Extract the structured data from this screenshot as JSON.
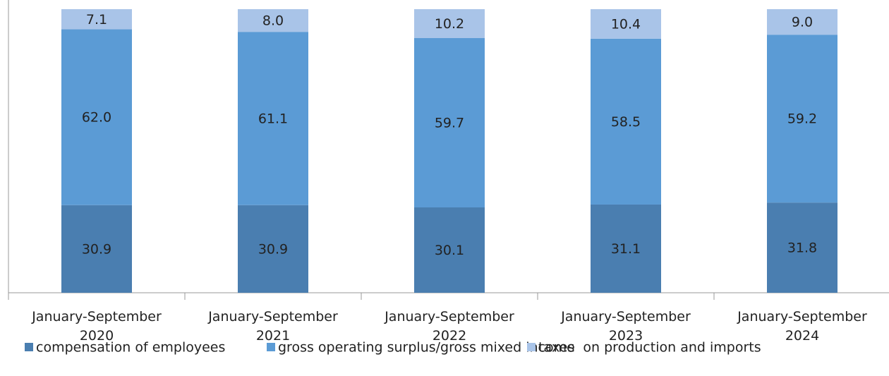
{
  "chart_data": {
    "type": "stacked_bar",
    "categories": [
      "January-September 2020",
      "January-September 2021",
      "January-September 2022",
      "January-September 2023",
      "January-September 2024"
    ],
    "series": [
      {
        "name": "compensation of employees",
        "color": "#4a7eb0",
        "values": [
          30.9,
          30.9,
          30.1,
          31.1,
          31.8
        ]
      },
      {
        "name": "gross operating surplus/gross mixed income",
        "color": "#5b9bd5",
        "values": [
          62.0,
          61.1,
          59.7,
          58.5,
          59.2
        ],
        "value_labels": [
          "62.0",
          "61.1",
          "59.7",
          "58.5",
          "59.2"
        ]
      },
      {
        "name": "taxes  on production and imports",
        "color": "#a9c4e8",
        "values": [
          7.1,
          8.0,
          10.2,
          10.4,
          9.0
        ],
        "value_labels": [
          "7.1",
          "8.0",
          "10.2",
          "10.4",
          "9.0"
        ]
      }
    ],
    "ylim": [
      0,
      100
    ],
    "legend": "bottom"
  }
}
